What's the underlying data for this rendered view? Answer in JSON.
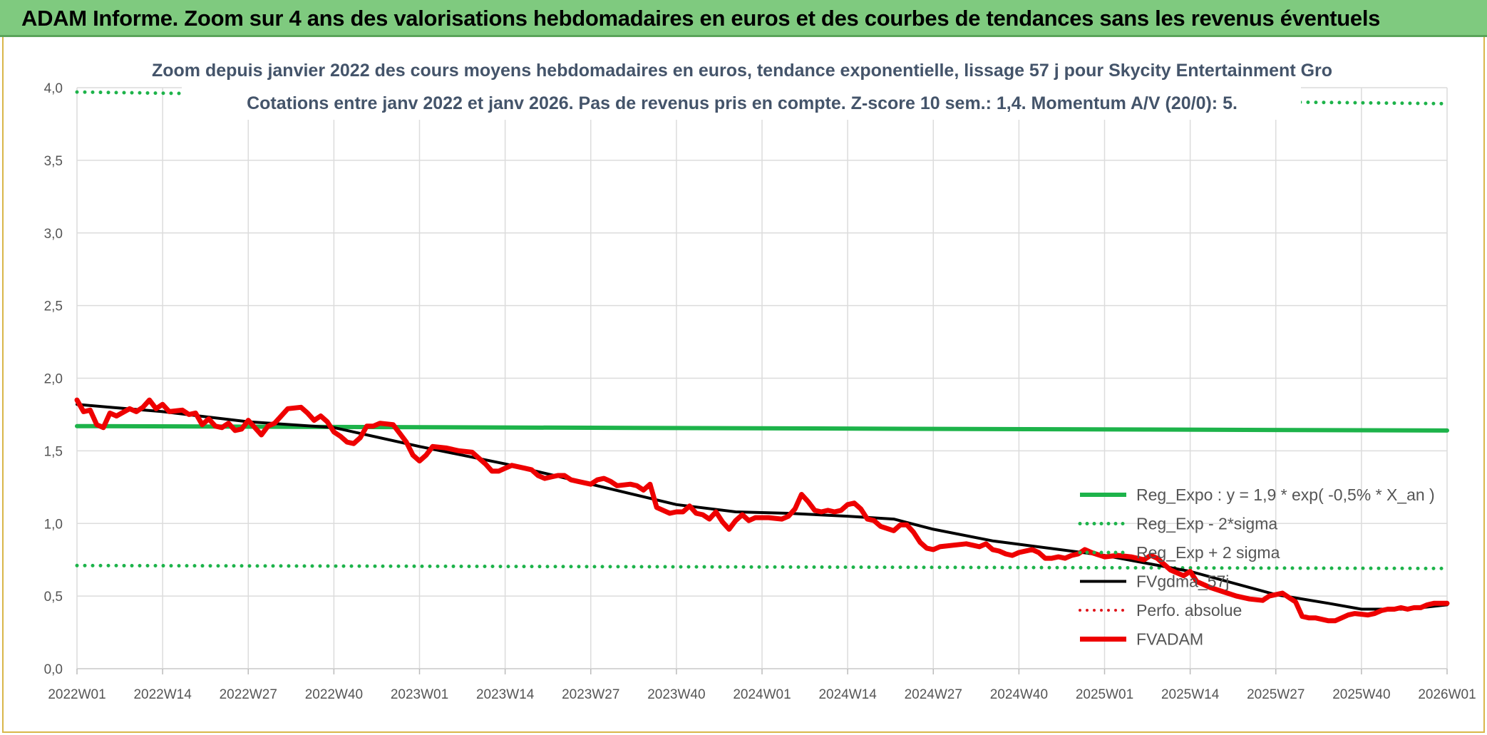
{
  "header": {
    "title": "ADAM Informe. Zoom sur 4 ans des valorisations hebdomadaires en euros et des courbes de tendances sans les revenus éventuels"
  },
  "chart_data": {
    "type": "line",
    "subtitle_line1": "Zoom depuis janvier 2022 des cours moyens hebdomadaires en euros, tendance exponentielle, lissage 57 j pour Skycity Entertainment Gro",
    "subtitle_line2": "Cotations entre janv 2022 et janv 2026. Pas de revenus pris en compte. Z-score 10 sem.: 1,4. Momentum A/V (20/0): 5.",
    "x_ticks": [
      "2022W01",
      "2022W14",
      "2022W27",
      "2022W40",
      "2023W01",
      "2023W14",
      "2023W27",
      "2023W40",
      "2024W01",
      "2024W14",
      "2024W27",
      "2024W40",
      "2025W01",
      "2025W14",
      "2025W27",
      "2025W40",
      "2026W01"
    ],
    "y_ticks": [
      "0,0",
      "0,5",
      "1,0",
      "1,5",
      "2,0",
      "2,5",
      "3,0",
      "3,5",
      "4,0"
    ],
    "ylim": [
      0,
      4
    ],
    "x_count": 209,
    "grid": true,
    "legend_position": "bottom-right",
    "series": [
      {
        "name": "Reg_Expo : y = 1,9 * exp( -0,5% *  X_an )",
        "color": "#1db34a",
        "style": "solid",
        "width": 6,
        "points": [
          [
            0,
            1.67
          ],
          [
            208,
            1.64
          ]
        ]
      },
      {
        "name": "Reg_Exp - 2*sigma",
        "color": "#1db34a",
        "style": "dotted",
        "width": 5,
        "points": [
          [
            0,
            0.71
          ],
          [
            208,
            0.69
          ]
        ]
      },
      {
        "name": "Reg_Exp + 2 sigma",
        "color": "#1db34a",
        "style": "dotted",
        "width": 5,
        "points": [
          [
            0,
            3.97
          ],
          [
            16,
            3.96
          ],
          [
            186,
            3.9
          ],
          [
            208,
            3.89
          ]
        ]
      },
      {
        "name": "FVgdma_57j",
        "color": "#000000",
        "style": "solid",
        "width": 4,
        "points": [
          [
            0,
            1.82
          ],
          [
            5,
            1.8
          ],
          [
            13,
            1.77
          ],
          [
            26,
            1.7
          ],
          [
            39,
            1.66
          ],
          [
            52,
            1.53
          ],
          [
            65,
            1.41
          ],
          [
            78,
            1.27
          ],
          [
            91,
            1.13
          ],
          [
            100,
            1.08
          ],
          [
            108,
            1.07
          ],
          [
            117,
            1.05
          ],
          [
            124,
            1.03
          ],
          [
            130,
            0.96
          ],
          [
            139,
            0.88
          ],
          [
            156,
            0.78
          ],
          [
            169,
            0.67
          ],
          [
            182,
            0.51
          ],
          [
            190,
            0.45
          ],
          [
            195,
            0.41
          ],
          [
            202,
            0.41
          ],
          [
            208,
            0.44
          ]
        ]
      },
      {
        "name": "Perfo. absolue",
        "color": "#e0141a",
        "style": "dotted",
        "width": 4,
        "points": []
      },
      {
        "name": "FVADAM",
        "color": "#ee0000",
        "style": "solid",
        "width": 7,
        "points": [
          [
            0,
            1.85
          ],
          [
            1,
            1.77
          ],
          [
            2,
            1.78
          ],
          [
            3,
            1.68
          ],
          [
            4,
            1.66
          ],
          [
            5,
            1.76
          ],
          [
            6,
            1.74
          ],
          [
            8,
            1.79
          ],
          [
            9,
            1.77
          ],
          [
            10,
            1.8
          ],
          [
            11,
            1.85
          ],
          [
            12,
            1.79
          ],
          [
            13,
            1.82
          ],
          [
            14,
            1.77
          ],
          [
            16,
            1.78
          ],
          [
            17,
            1.75
          ],
          [
            18,
            1.76
          ],
          [
            19,
            1.68
          ],
          [
            20,
            1.72
          ],
          [
            21,
            1.67
          ],
          [
            22,
            1.66
          ],
          [
            23,
            1.69
          ],
          [
            24,
            1.64
          ],
          [
            25,
            1.65
          ],
          [
            26,
            1.71
          ],
          [
            27,
            1.66
          ],
          [
            28,
            1.61
          ],
          [
            29,
            1.67
          ],
          [
            30,
            1.69
          ],
          [
            31,
            1.74
          ],
          [
            32,
            1.79
          ],
          [
            34,
            1.8
          ],
          [
            35,
            1.76
          ],
          [
            36,
            1.71
          ],
          [
            37,
            1.74
          ],
          [
            38,
            1.7
          ],
          [
            39,
            1.63
          ],
          [
            40,
            1.6
          ],
          [
            41,
            1.56
          ],
          [
            42,
            1.55
          ],
          [
            43,
            1.59
          ],
          [
            44,
            1.67
          ],
          [
            45,
            1.67
          ],
          [
            46,
            1.69
          ],
          [
            48,
            1.68
          ],
          [
            49,
            1.62
          ],
          [
            50,
            1.56
          ],
          [
            51,
            1.47
          ],
          [
            52,
            1.43
          ],
          [
            53,
            1.47
          ],
          [
            54,
            1.53
          ],
          [
            56,
            1.52
          ],
          [
            58,
            1.5
          ],
          [
            60,
            1.49
          ],
          [
            61,
            1.45
          ],
          [
            62,
            1.41
          ],
          [
            63,
            1.36
          ],
          [
            64,
            1.36
          ],
          [
            65,
            1.38
          ],
          [
            66,
            1.4
          ],
          [
            68,
            1.38
          ],
          [
            69,
            1.37
          ],
          [
            70,
            1.33
          ],
          [
            71,
            1.31
          ],
          [
            72,
            1.32
          ],
          [
            73,
            1.33
          ],
          [
            74,
            1.33
          ],
          [
            75,
            1.3
          ],
          [
            76,
            1.29
          ],
          [
            77,
            1.28
          ],
          [
            78,
            1.27
          ],
          [
            79,
            1.3
          ],
          [
            80,
            1.31
          ],
          [
            81,
            1.29
          ],
          [
            82,
            1.26
          ],
          [
            84,
            1.27
          ],
          [
            85,
            1.26
          ],
          [
            86,
            1.23
          ],
          [
            87,
            1.27
          ],
          [
            88,
            1.11
          ],
          [
            89,
            1.09
          ],
          [
            90,
            1.07
          ],
          [
            91,
            1.08
          ],
          [
            92,
            1.08
          ],
          [
            93,
            1.12
          ],
          [
            94,
            1.07
          ],
          [
            95,
            1.06
          ],
          [
            96,
            1.03
          ],
          [
            97,
            1.08
          ],
          [
            98,
            1.01
          ],
          [
            99,
            0.96
          ],
          [
            100,
            1.02
          ],
          [
            101,
            1.06
          ],
          [
            102,
            1.02
          ],
          [
            103,
            1.04
          ],
          [
            105,
            1.04
          ],
          [
            107,
            1.03
          ],
          [
            108,
            1.05
          ],
          [
            109,
            1.1
          ],
          [
            110,
            1.2
          ],
          [
            111,
            1.15
          ],
          [
            112,
            1.09
          ],
          [
            113,
            1.08
          ],
          [
            114,
            1.09
          ],
          [
            115,
            1.08
          ],
          [
            116,
            1.09
          ],
          [
            117,
            1.13
          ],
          [
            118,
            1.14
          ],
          [
            119,
            1.1
          ],
          [
            120,
            1.03
          ],
          [
            121,
            1.02
          ],
          [
            122,
            0.98
          ],
          [
            124,
            0.95
          ],
          [
            125,
            0.99
          ],
          [
            126,
            0.99
          ],
          [
            127,
            0.94
          ],
          [
            128,
            0.87
          ],
          [
            129,
            0.83
          ],
          [
            130,
            0.82
          ],
          [
            131,
            0.84
          ],
          [
            133,
            0.85
          ],
          [
            135,
            0.86
          ],
          [
            136,
            0.85
          ],
          [
            137,
            0.84
          ],
          [
            138,
            0.86
          ],
          [
            139,
            0.82
          ],
          [
            140,
            0.81
          ],
          [
            141,
            0.79
          ],
          [
            142,
            0.78
          ],
          [
            143,
            0.8
          ],
          [
            145,
            0.82
          ],
          [
            146,
            0.8
          ],
          [
            147,
            0.76
          ],
          [
            148,
            0.76
          ],
          [
            149,
            0.77
          ],
          [
            150,
            0.76
          ],
          [
            151,
            0.78
          ],
          [
            152,
            0.79
          ],
          [
            153,
            0.82
          ],
          [
            154,
            0.8
          ],
          [
            156,
            0.77
          ],
          [
            158,
            0.78
          ],
          [
            160,
            0.77
          ],
          [
            162,
            0.75
          ],
          [
            163,
            0.78
          ],
          [
            164,
            0.76
          ],
          [
            165,
            0.72
          ],
          [
            166,
            0.68
          ],
          [
            167,
            0.66
          ],
          [
            168,
            0.64
          ],
          [
            169,
            0.67
          ],
          [
            170,
            0.6
          ],
          [
            171,
            0.58
          ],
          [
            172,
            0.56
          ],
          [
            174,
            0.53
          ],
          [
            176,
            0.5
          ],
          [
            178,
            0.48
          ],
          [
            180,
            0.47
          ],
          [
            181,
            0.5
          ],
          [
            182,
            0.51
          ],
          [
            183,
            0.52
          ],
          [
            184,
            0.49
          ],
          [
            185,
            0.46
          ],
          [
            186,
            0.36
          ],
          [
            187,
            0.35
          ],
          [
            188,
            0.35
          ],
          [
            190,
            0.33
          ],
          [
            191,
            0.33
          ],
          [
            192,
            0.35
          ],
          [
            193,
            0.37
          ],
          [
            194,
            0.38
          ],
          [
            196,
            0.37
          ],
          [
            197,
            0.38
          ],
          [
            198,
            0.4
          ],
          [
            199,
            0.41
          ],
          [
            200,
            0.41
          ],
          [
            201,
            0.42
          ],
          [
            202,
            0.41
          ],
          [
            203,
            0.42
          ],
          [
            204,
            0.42
          ],
          [
            205,
            0.44
          ],
          [
            206,
            0.45
          ],
          [
            207,
            0.45
          ],
          [
            208,
            0.45
          ]
        ]
      }
    ]
  }
}
